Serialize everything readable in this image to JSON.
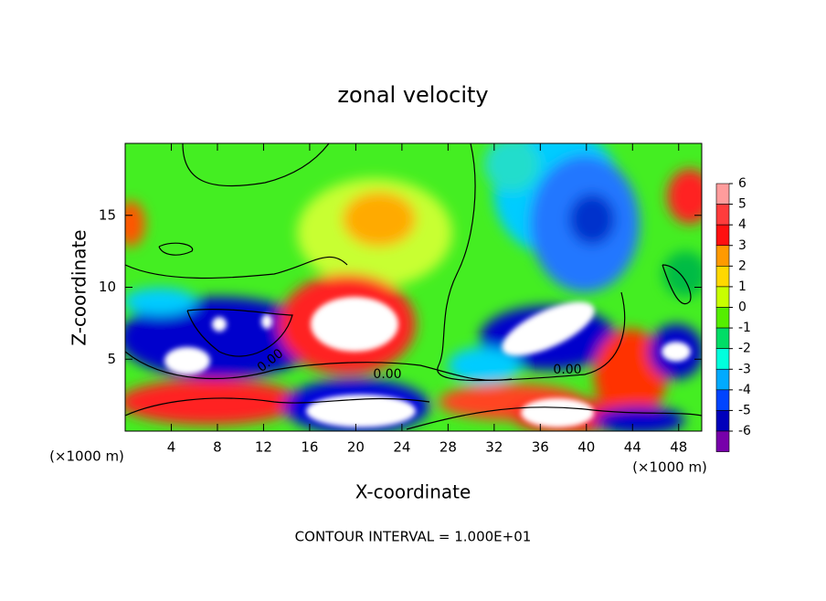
{
  "chart_data": {
    "type": "contour",
    "title": "zonal velocity",
    "x_label": "X-coordinate",
    "y_label": "Z-coordinate",
    "x_unit": "(×1000 m)",
    "note": "CONTOUR INTERVAL = 1.000E+01",
    "contour_labels": [
      "0.00",
      "0.00",
      "0.00"
    ],
    "xlim": [
      0,
      50
    ],
    "xticks": [
      4,
      8,
      12,
      16,
      20,
      24,
      28,
      32,
      36,
      40,
      44,
      48
    ],
    "ylim": [
      0,
      20
    ],
    "yticks": [
      5,
      10,
      15
    ],
    "colorbar": {
      "ticks": [
        6,
        5,
        4,
        3,
        2,
        1,
        0,
        -1,
        -2,
        -3,
        -4,
        -5,
        -6
      ],
      "colors": [
        "#ff9c9c",
        "#ff3c3c",
        "#ff1010",
        "#ff9a00",
        "#ffd800",
        "#c8ff00",
        "#55ee00",
        "#00dd66",
        "#00ffdd",
        "#00aaff",
        "#0044ff",
        "#0000bb",
        "#7700aa"
      ]
    }
  }
}
